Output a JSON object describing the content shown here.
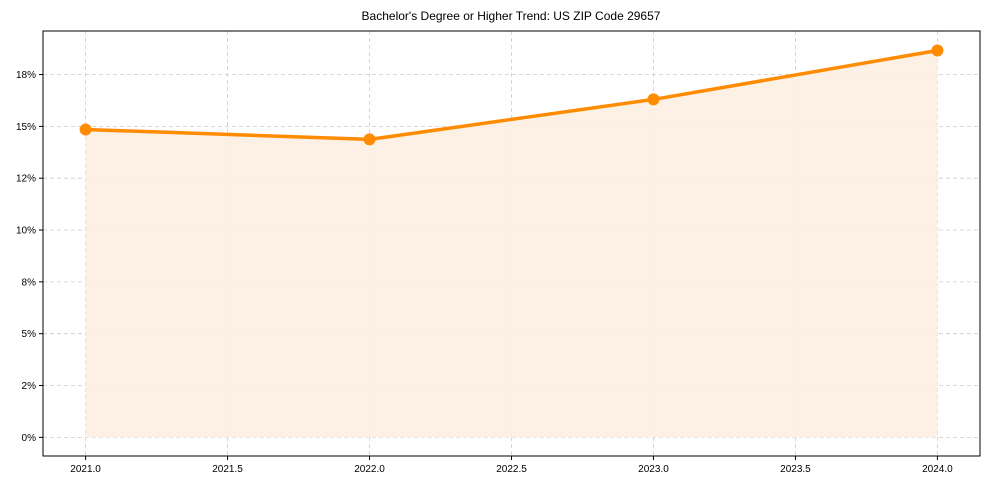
{
  "chart_data": {
    "type": "line",
    "title": "Bachelor's Degree or Higher Trend: US ZIP Code 29657",
    "xlabel": "",
    "ylabel": "",
    "x": [
      2021,
      2022,
      2023,
      2024
    ],
    "series": [
      {
        "name": "Bachelor's Degree or Higher (%)",
        "values": [
          14.85,
          14.37,
          16.3,
          18.66
        ],
        "color": "#ff8c00",
        "fill_color": "#fdf0e3"
      }
    ],
    "x_ticks": [
      2021.0,
      2021.5,
      2022.0,
      2022.5,
      2023.0,
      2023.5,
      2024.0
    ],
    "x_tick_labels": [
      "2021.0",
      "2021.5",
      "2022.0",
      "2022.5",
      "2023.0",
      "2023.5",
      "2024.0"
    ],
    "y_ticks": [
      0,
      2.5,
      5,
      7.5,
      10,
      12.5,
      15,
      17.5
    ],
    "y_tick_labels": [
      "0%",
      "2%",
      "5%",
      "8%",
      "10%",
      "12%",
      "15%",
      "18%"
    ],
    "xlim": [
      2020.85,
      2024.15
    ],
    "ylim": [
      -0.9,
      19.6
    ],
    "grid": true,
    "legend": null
  }
}
